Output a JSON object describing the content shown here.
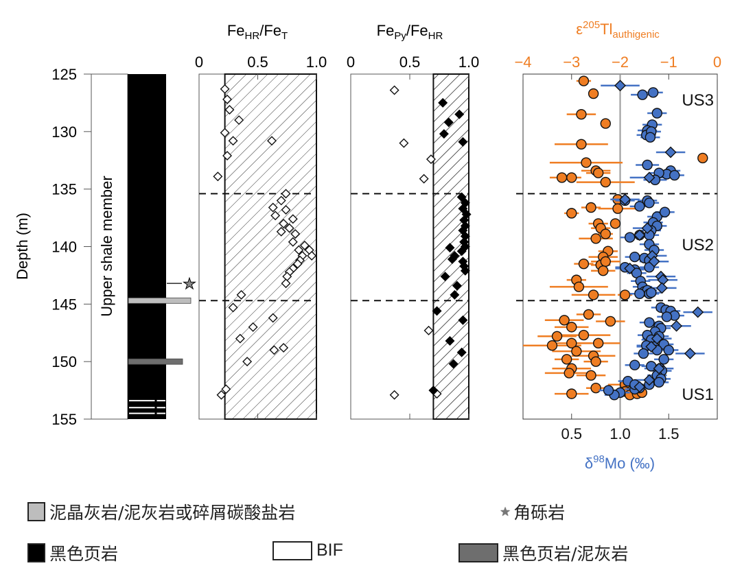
{
  "chart_data": [
    {
      "type": "lithology-column",
      "ylabel": "Depth (m)",
      "ylim": [
        125,
        155
      ],
      "yticks": [
        "125",
        "130",
        "135",
        "140",
        "145",
        "150",
        "155"
      ],
      "unit_label": "Upper shale member",
      "base_lithology": "black-shale",
      "beds": [
        {
          "depth": 144.7,
          "type": "mudstone-carbonate",
          "color": "#bdbdbd"
        },
        {
          "depth": 150.0,
          "type": "black-shale-mudstone",
          "color": "#6e6e6e"
        }
      ],
      "bif_lines": [
        153.4,
        154.0,
        154.5
      ],
      "breccia_depth": 143.2
    },
    {
      "type": "scatter",
      "title": "Fe_HR/Fe_T",
      "title_parts": {
        "main1": "Fe",
        "sub1": "HR",
        "sep": "/",
        "main2": "Fe",
        "sub2": "T"
      },
      "xlim": [
        0,
        1.0
      ],
      "xticks": [
        "0",
        "0.5",
        "1.0"
      ],
      "threshold": 0.22,
      "points": [
        [
          0.22,
          126.3
        ],
        [
          0.24,
          127.2
        ],
        [
          0.26,
          128.1
        ],
        [
          0.34,
          129.0
        ],
        [
          0.22,
          130.1
        ],
        [
          0.29,
          130.8
        ],
        [
          0.62,
          130.8
        ],
        [
          0.24,
          132.1
        ],
        [
          0.16,
          133.9
        ],
        [
          0.74,
          135.4
        ],
        [
          0.7,
          136.0
        ],
        [
          0.63,
          136.6
        ],
        [
          0.74,
          136.8
        ],
        [
          0.65,
          137.3
        ],
        [
          0.8,
          137.6
        ],
        [
          0.72,
          138.0
        ],
        [
          0.77,
          138.4
        ],
        [
          0.7,
          138.7
        ],
        [
          0.82,
          138.9
        ],
        [
          0.8,
          139.6
        ],
        [
          0.9,
          139.9
        ],
        [
          0.85,
          140.3
        ],
        [
          0.94,
          140.3
        ],
        [
          0.88,
          140.8
        ],
        [
          0.96,
          140.8
        ],
        [
          0.86,
          141.2
        ],
        [
          0.84,
          141.5
        ],
        [
          0.8,
          141.9
        ],
        [
          0.77,
          142.2
        ],
        [
          0.75,
          142.6
        ],
        [
          0.74,
          143.2
        ],
        [
          0.36,
          144.2
        ],
        [
          0.29,
          145.3
        ],
        [
          0.63,
          146.2
        ],
        [
          0.46,
          147.0
        ],
        [
          0.35,
          148.0
        ],
        [
          0.72,
          148.8
        ],
        [
          0.41,
          150.0
        ],
        [
          0.64,
          149.0
        ],
        [
          0.23,
          152.4
        ],
        [
          0.19,
          152.9
        ]
      ],
      "hlines": [
        135.4,
        144.7
      ]
    },
    {
      "type": "scatter",
      "title": "Fe_Py/Fe_HR",
      "title_parts": {
        "main1": "Fe",
        "sub1": "Py",
        "sep": "/",
        "main2": "Fe",
        "sub2": "HR"
      },
      "xlim": [
        0,
        1.0
      ],
      "xticks": [
        "0",
        "0.5",
        "1.0"
      ],
      "threshold": 0.7,
      "open_points": [
        [
          0.37,
          126.4
        ],
        [
          0.45,
          131.0
        ],
        [
          0.68,
          132.4
        ],
        [
          0.62,
          134.1
        ],
        [
          0.66,
          147.3
        ],
        [
          0.37,
          152.9
        ],
        [
          0.73,
          152.8
        ]
      ],
      "filled_points": [
        [
          0.78,
          127.5
        ],
        [
          0.92,
          128.5
        ],
        [
          0.83,
          129.2
        ],
        [
          0.79,
          130.2
        ],
        [
          0.95,
          130.9
        ],
        [
          0.94,
          135.7
        ],
        [
          0.97,
          136.2
        ],
        [
          0.95,
          136.7
        ],
        [
          0.98,
          137.2
        ],
        [
          0.96,
          137.7
        ],
        [
          0.97,
          138.2
        ],
        [
          0.95,
          138.6
        ],
        [
          0.97,
          139.1
        ],
        [
          0.96,
          139.6
        ],
        [
          0.97,
          140.0
        ],
        [
          0.84,
          140.1
        ],
        [
          0.94,
          140.4
        ],
        [
          0.88,
          140.8
        ],
        [
          0.86,
          141.1
        ],
        [
          0.95,
          141.3
        ],
        [
          0.96,
          141.7
        ],
        [
          0.97,
          142.1
        ],
        [
          0.8,
          142.6
        ],
        [
          0.9,
          143.4
        ],
        [
          0.88,
          144.2
        ],
        [
          0.73,
          145.6
        ],
        [
          0.95,
          146.4
        ],
        [
          0.84,
          148.2
        ],
        [
          0.94,
          149.2
        ],
        [
          0.87,
          150.2
        ],
        [
          0.7,
          152.5
        ]
      ],
      "hlines": [
        135.4,
        144.7
      ]
    },
    {
      "type": "scatter-errorbar",
      "top_axis": {
        "title": "ε205Tl_authigenic",
        "title_parts": {
          "eps": "ε",
          "sup": "205",
          "main": "Tl",
          "sub": "authigenic"
        },
        "xlim": [
          -4,
          0
        ],
        "xticks": [
          "−4",
          "−3",
          "−2",
          "−1",
          "0"
        ],
        "color": "#ef7d22"
      },
      "bottom_axis": {
        "title": "δ98Mo (‰)",
        "title_parts": {
          "delta": "δ",
          "sup": "98",
          "main": "Mo (‰)"
        },
        "xlim": [
          0,
          2.0
        ],
        "xticks": [
          "0.5",
          "1.0",
          "1.5"
        ],
        "color": "#4472c4"
      },
      "reference_line_mo": 1.0,
      "zone_labels": [
        {
          "text": "US3",
          "depth": 127.2
        },
        {
          "text": "US2",
          "depth": 139.8
        },
        {
          "text": "US1",
          "depth": 152.8
        }
      ],
      "hlines": [
        135.4,
        144.7
      ],
      "tl_series": {
        "name": "ε205Tl",
        "color": "#ef7d22",
        "points": [
          [
            -2.75,
            125.6,
            0.15
          ],
          [
            -2.55,
            126.7,
            0.1
          ],
          [
            -2.8,
            128.5,
            0.3
          ],
          [
            -2.3,
            129.3,
            0.1
          ],
          [
            -2.8,
            131.1,
            0.55
          ],
          [
            -2.7,
            132.7,
            0.75
          ],
          [
            -2.5,
            133.4,
            0.3
          ],
          [
            -2.45,
            133.6,
            0.25
          ],
          [
            -3.2,
            134.0,
            0.25
          ],
          [
            -3.0,
            134.0,
            0.2
          ],
          [
            -2.3,
            134.4,
            0.6
          ],
          [
            -0.3,
            132.3,
            0.1
          ],
          [
            -2.05,
            135.9,
            0.15
          ],
          [
            -3.0,
            137.1,
            0.15
          ],
          [
            -2.6,
            136.6,
            0.2
          ],
          [
            -2.05,
            136.7,
            0.4
          ],
          [
            -2.45,
            138.0,
            0.2
          ],
          [
            -2.4,
            138.4,
            0.2
          ],
          [
            -2.3,
            138.9,
            0.15
          ],
          [
            -2.5,
            139.3,
            0.35
          ],
          [
            -2.1,
            138.0,
            0.1
          ],
          [
            -2.25,
            140.4,
            0.2
          ],
          [
            -2.35,
            140.9,
            0.3
          ],
          [
            -2.75,
            141.5,
            0.2
          ],
          [
            -2.4,
            141.6,
            0.2
          ],
          [
            -2.3,
            141.3,
            0.3
          ],
          [
            -2.35,
            142.1,
            0.25
          ],
          [
            -2.9,
            142.9,
            0.2
          ],
          [
            -2.85,
            143.5,
            0.6
          ],
          [
            -2.55,
            144.2,
            0.45
          ],
          [
            -1.9,
            144.2,
            0.15
          ],
          [
            -2.65,
            145.9,
            0.25
          ],
          [
            -3.15,
            146.4,
            0.4
          ],
          [
            -2.2,
            146.5,
            0.3
          ],
          [
            -3.0,
            147.0,
            0.35
          ],
          [
            -2.75,
            147.7,
            0.55
          ],
          [
            -3.3,
            147.8,
            0.4
          ],
          [
            -3.0,
            148.4,
            0.4
          ],
          [
            -2.45,
            148.4,
            0.45
          ],
          [
            -3.4,
            148.6,
            0.6
          ],
          [
            -2.9,
            149.1,
            0.5
          ],
          [
            -3.1,
            149.8,
            0.25
          ],
          [
            -2.55,
            149.5,
            0.45
          ],
          [
            -2.5,
            150.0,
            0.25
          ],
          [
            -3.0,
            150.6,
            0.4
          ],
          [
            -3.05,
            151.0,
            0.5
          ],
          [
            -2.6,
            151.2,
            0.3
          ],
          [
            -2.5,
            152.3,
            0.2
          ],
          [
            -3.0,
            152.8,
            0.35
          ],
          [
            -1.9,
            152.0,
            0.35
          ],
          [
            -1.9,
            152.6,
            0.2
          ],
          [
            -1.8,
            152.9,
            0.15
          ],
          [
            -1.65,
            152.8,
            0.15
          ],
          [
            -1.55,
            152.7,
            0.1
          ]
        ]
      },
      "mo_series": {
        "name": "δ98Mo",
        "color": "#4472c4",
        "circles": [
          [
            1.23,
            126.8,
            0.12
          ],
          [
            1.34,
            126.6,
            0.1
          ],
          [
            1.38,
            128.4,
            0.1
          ],
          [
            1.33,
            129.4,
            0.1
          ],
          [
            1.28,
            129.9,
            0.1
          ],
          [
            1.27,
            130.3,
            0.1
          ],
          [
            1.32,
            130.0,
            0.1
          ],
          [
            1.31,
            130.5,
            0.1
          ],
          [
            1.28,
            132.9,
            0.12
          ],
          [
            1.52,
            133.4,
            0.1
          ],
          [
            1.48,
            133.7,
            0.1
          ],
          [
            1.56,
            133.8,
            0.1
          ],
          [
            1.4,
            133.6,
            0.1
          ],
          [
            1.36,
            134.2,
            0.12
          ],
          [
            1.05,
            136.0,
            0.1
          ],
          [
            1.28,
            136.0,
            0.1
          ],
          [
            1.3,
            136.2,
            0.1
          ],
          [
            1.2,
            136.5,
            0.1
          ],
          [
            1.38,
            137.4,
            0.1
          ],
          [
            1.46,
            137.0,
            0.1
          ],
          [
            1.34,
            137.9,
            0.1
          ],
          [
            1.38,
            138.2,
            0.1
          ],
          [
            1.32,
            138.6,
            0.1
          ],
          [
            1.2,
            139.0,
            0.1
          ],
          [
            1.3,
            139.0,
            0.1
          ],
          [
            1.1,
            139.2,
            0.1
          ],
          [
            1.3,
            139.8,
            0.1
          ],
          [
            1.35,
            140.3,
            0.1
          ],
          [
            1.15,
            140.9,
            0.1
          ],
          [
            1.25,
            141.0,
            0.1
          ],
          [
            1.3,
            141.2,
            0.1
          ],
          [
            1.3,
            141.8,
            0.1
          ],
          [
            1.05,
            141.8,
            0.1
          ],
          [
            1.15,
            142.0,
            0.1
          ],
          [
            1.17,
            142.3,
            0.1
          ],
          [
            1.21,
            143.0,
            0.1
          ],
          [
            1.23,
            143.5,
            0.1
          ],
          [
            1.25,
            143.9,
            0.1
          ],
          [
            1.28,
            143.8,
            0.1
          ],
          [
            1.3,
            144.1,
            0.1
          ],
          [
            1.2,
            144.1,
            0.1
          ],
          [
            1.32,
            144.0,
            0.1
          ],
          [
            1.42,
            145.3,
            0.1
          ],
          [
            1.47,
            145.5,
            0.1
          ],
          [
            1.52,
            145.6,
            0.1
          ],
          [
            1.56,
            146.0,
            0.1
          ],
          [
            1.48,
            146.1,
            0.1
          ],
          [
            1.3,
            146.6,
            0.1
          ],
          [
            1.4,
            146.9,
            0.1
          ],
          [
            1.42,
            147.1,
            0.1
          ],
          [
            1.36,
            147.4,
            0.1
          ],
          [
            1.28,
            147.7,
            0.1
          ],
          [
            1.32,
            148.1,
            0.1
          ],
          [
            1.4,
            147.8,
            0.1
          ],
          [
            1.27,
            148.6,
            0.1
          ],
          [
            1.35,
            148.7,
            0.1
          ],
          [
            1.45,
            148.5,
            0.1
          ],
          [
            1.38,
            149.0,
            0.1
          ],
          [
            1.5,
            149.0,
            0.1
          ],
          [
            1.24,
            149.3,
            0.1
          ],
          [
            1.45,
            149.8,
            0.1
          ],
          [
            1.15,
            150.3,
            0.1
          ],
          [
            1.32,
            150.4,
            0.1
          ],
          [
            1.41,
            150.6,
            0.1
          ],
          [
            1.43,
            150.8,
            0.1
          ],
          [
            1.38,
            151.2,
            0.1
          ],
          [
            1.42,
            151.5,
            0.1
          ],
          [
            1.4,
            151.8,
            0.1
          ],
          [
            1.3,
            152.0,
            0.1
          ],
          [
            1.2,
            152.3,
            0.1
          ],
          [
            1.08,
            151.7,
            0.1
          ],
          [
            1.15,
            152.4,
            0.1
          ],
          [
            1.0,
            152.7,
            0.1
          ],
          [
            0.94,
            152.9,
            0.1
          ],
          [
            0.88,
            152.5,
            0.1
          ],
          [
            1.15,
            152.0,
            0.1
          ]
        ],
        "diamonds": [
          [
            1.0,
            126.0,
            0.2
          ],
          [
            1.52,
            131.8,
            0.15
          ],
          [
            1.3,
            134.0,
            0.2
          ],
          [
            1.05,
            135.9,
            0.15
          ],
          [
            1.28,
            138.4,
            0.15
          ],
          [
            1.2,
            139.0,
            0.15
          ],
          [
            1.33,
            140.8,
            0.15
          ],
          [
            1.35,
            141.3,
            0.15
          ],
          [
            1.1,
            141.9,
            0.15
          ],
          [
            1.42,
            142.6,
            0.15
          ],
          [
            1.44,
            142.9,
            0.15
          ],
          [
            1.43,
            143.6,
            0.15
          ],
          [
            1.8,
            145.7,
            0.15
          ],
          [
            1.58,
            146.9,
            0.15
          ],
          [
            1.38,
            148.0,
            0.15
          ],
          [
            1.32,
            148.7,
            0.15
          ],
          [
            1.72,
            149.3,
            0.15
          ],
          [
            1.4,
            150.6,
            0.15
          ],
          [
            1.3,
            151.6,
            0.15
          ],
          [
            1.2,
            152.2,
            0.1
          ]
        ]
      }
    }
  ],
  "legend": [
    {
      "label": "泥晶灰岩/泥灰岩或碎屑碳酸盐岩",
      "kind": "swatch",
      "color": "#bdbdbd"
    },
    {
      "label": "角砾岩",
      "kind": "star",
      "color": "#888888"
    },
    {
      "label": "黑色页岩",
      "kind": "swatch",
      "color": "#000000"
    },
    {
      "label": "BIF",
      "kind": "swatch",
      "color": "#ffffff"
    },
    {
      "label": "黑色页岩/泥灰岩",
      "kind": "swatch",
      "color": "#6e6e6e"
    }
  ]
}
